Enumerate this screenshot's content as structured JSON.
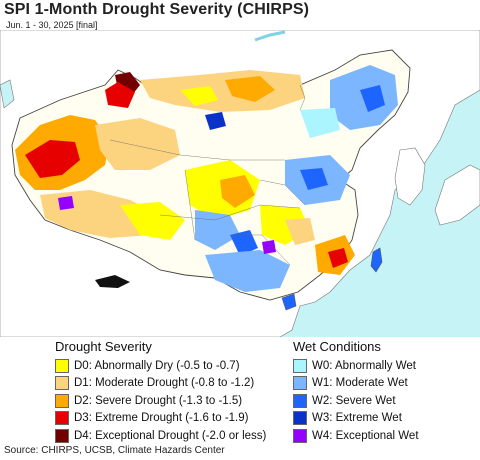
{
  "title": "SPI 1-Month Drought Severity (CHIRPS)",
  "subtitle": "Jun. 1 - 30, 2025 [final]",
  "map": {
    "colors": {
      "ocean": "#c6f3f5",
      "land_neutral": "#ffffff",
      "d0": "#ffff00",
      "d1": "#fcd37f",
      "d2": "#ffaa00",
      "d3": "#e60000",
      "d4": "#730000",
      "w0": "#aaf5ff",
      "w1": "#7bb6ff",
      "w2": "#1e64ff",
      "w3": "#0a32c8",
      "w4": "#9600ff",
      "border": "#555555"
    }
  },
  "legend": {
    "drought": {
      "heading": "Drought Severity",
      "items": [
        {
          "label": "D0: Abnormally Dry (-0.5 to -0.7)",
          "color": "#ffff00"
        },
        {
          "label": "D1: Moderate Drought (-0.8 to -1.2)",
          "color": "#fcd37f"
        },
        {
          "label": "D2: Severe Drought (-1.3 to -1.5)",
          "color": "#ffaa00"
        },
        {
          "label": "D3: Extreme Drought (-1.6 to -1.9)",
          "color": "#e60000"
        },
        {
          "label": "D4: Exceptional Drought (-2.0 or less)",
          "color": "#730000"
        }
      ]
    },
    "wet": {
      "heading": "Wet Conditions",
      "items": [
        {
          "label": "W0: Abnormally Wet",
          "color": "#aaf5ff"
        },
        {
          "label": "W1: Moderate Wet",
          "color": "#7bb6ff"
        },
        {
          "label": "W2: Severe Wet",
          "color": "#1e64ff"
        },
        {
          "label": "W3: Extreme Wet",
          "color": "#0a32c8"
        },
        {
          "label": "W4: Exceptional Wet",
          "color": "#9600ff"
        }
      ]
    }
  },
  "source": "Source: CHIRPS, UCSB, Climate Hazards Center"
}
